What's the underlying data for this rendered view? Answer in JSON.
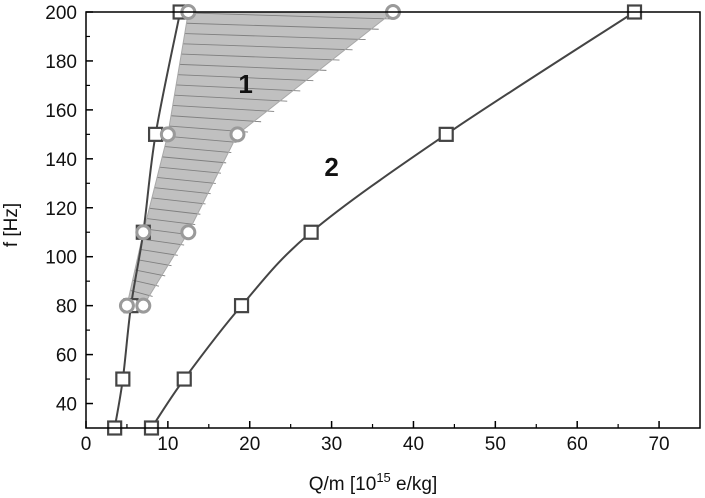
{
  "chart_data": {
    "type": "line",
    "title": "",
    "xlabel_main": "Q/m [10",
    "xlabel_sup": "15",
    "xlabel_rest": " e/kg]",
    "ylabel": "f [Hz]",
    "xlim": [
      0,
      75
    ],
    "ylim": [
      30,
      200
    ],
    "xticks": [
      "0",
      "10",
      "20",
      "30",
      "40",
      "50",
      "60",
      "70"
    ],
    "yticks": [
      "40",
      "60",
      "80",
      "100",
      "120",
      "140",
      "160",
      "180",
      "200"
    ],
    "xtick_values": [
      0,
      10,
      20,
      30,
      40,
      50,
      60,
      70
    ],
    "ytick_values": [
      40,
      60,
      80,
      100,
      120,
      140,
      160,
      180,
      200
    ],
    "grid": false,
    "series": [
      {
        "marker": "square",
        "line": true,
        "points": [
          [
            3.5,
            30
          ],
          [
            4.5,
            50
          ],
          [
            5.5,
            80
          ],
          [
            7,
            110
          ],
          [
            8.5,
            150
          ],
          [
            11.5,
            200
          ]
        ]
      },
      {
        "marker": "square",
        "line": true,
        "points": [
          [
            8,
            30
          ],
          [
            12,
            50
          ],
          [
            19,
            80
          ],
          [
            27.5,
            110
          ],
          [
            44,
            150
          ],
          [
            67,
            200
          ]
        ]
      },
      {
        "marker": "circle",
        "line": false,
        "points": [
          [
            5,
            80
          ],
          [
            7,
            110
          ],
          [
            10,
            150
          ],
          [
            12.5,
            200
          ]
        ]
      },
      {
        "marker": "circle",
        "line": false,
        "points": [
          [
            7,
            80
          ],
          [
            12.5,
            110
          ],
          [
            18.5,
            150
          ],
          [
            37.5,
            200
          ]
        ]
      }
    ],
    "region": {
      "left_boundary": [
        [
          5,
          80
        ],
        [
          7,
          110
        ],
        [
          10,
          150
        ],
        [
          12.5,
          200
        ]
      ],
      "right_boundary": [
        [
          7,
          80
        ],
        [
          12.5,
          110
        ],
        [
          18.5,
          150
        ],
        [
          37.5,
          200
        ]
      ],
      "fill": "#c0c0c0",
      "hatch_color": "#808080"
    },
    "annotations": [
      {
        "text": "1",
        "x": 19.5,
        "y": 167
      },
      {
        "text": "2",
        "x": 30,
        "y": 133
      }
    ],
    "colors": {
      "line": "#444444",
      "square_marker": "#444444",
      "circle_marker": "#9a9a9a",
      "axis": "#000000"
    }
  }
}
